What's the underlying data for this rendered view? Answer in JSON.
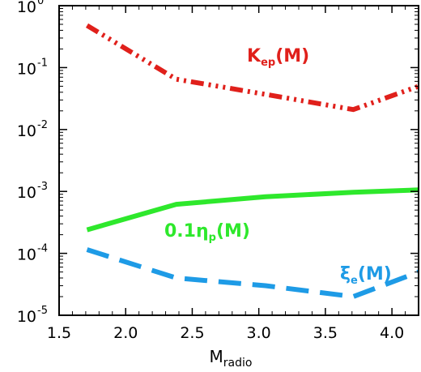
{
  "chart_data": {
    "type": "line",
    "x_range": [
      1.5,
      4.2
    ],
    "y_range": [
      1e-05,
      1
    ],
    "y_scale": "log",
    "x_ticks": [
      "1.5",
      "2.0",
      "2.5",
      "3.0",
      "3.5",
      "4.0"
    ],
    "y_ticks": [
      {
        "base": "10",
        "exp": "-5",
        "value": 1e-05
      },
      {
        "base": "10",
        "exp": "-4",
        "value": 0.0001
      },
      {
        "base": "10",
        "exp": "-3",
        "value": 0.001
      },
      {
        "base": "10",
        "exp": "-2",
        "value": 0.01
      },
      {
        "base": "10",
        "exp": "-1",
        "value": 0.1
      },
      {
        "base": "10",
        "exp": "0",
        "value": 1
      }
    ],
    "xlabel": {
      "main": "M",
      "sub": "radio"
    },
    "ylabel": "",
    "grid": false,
    "series": [
      {
        "name": "K_ep(M)",
        "label_main": "K",
        "label_sub": "ep",
        "label_tail": "(M)",
        "color": "#e0201b",
        "style": "dash-dot-dot-dot",
        "points": [
          [
            1.71,
            0.48
          ],
          [
            2.38,
            0.065
          ],
          [
            3.05,
            0.037
          ],
          [
            3.71,
            0.021
          ],
          [
            4.2,
            0.05
          ]
        ]
      },
      {
        "name": "0.1η_p(M)",
        "label_main": "0.1η",
        "label_sub": "p",
        "label_tail": "(M)",
        "color": "#2ee82c",
        "style": "solid",
        "points": [
          [
            1.71,
            0.00024
          ],
          [
            2.38,
            0.00062
          ],
          [
            3.05,
            0.00082
          ],
          [
            3.71,
            0.00097
          ],
          [
            4.2,
            0.00106
          ]
        ]
      },
      {
        "name": "ξ_e(M)",
        "label_main": "ξ",
        "label_sub": "e",
        "label_tail": "(M)",
        "color": "#1e9be6",
        "style": "dashed",
        "points": [
          [
            1.71,
            0.000115
          ],
          [
            2.38,
            4e-05
          ],
          [
            3.05,
            3e-05
          ],
          [
            3.71,
            2e-05
          ],
          [
            4.2,
            5e-05
          ]
        ]
      }
    ]
  }
}
